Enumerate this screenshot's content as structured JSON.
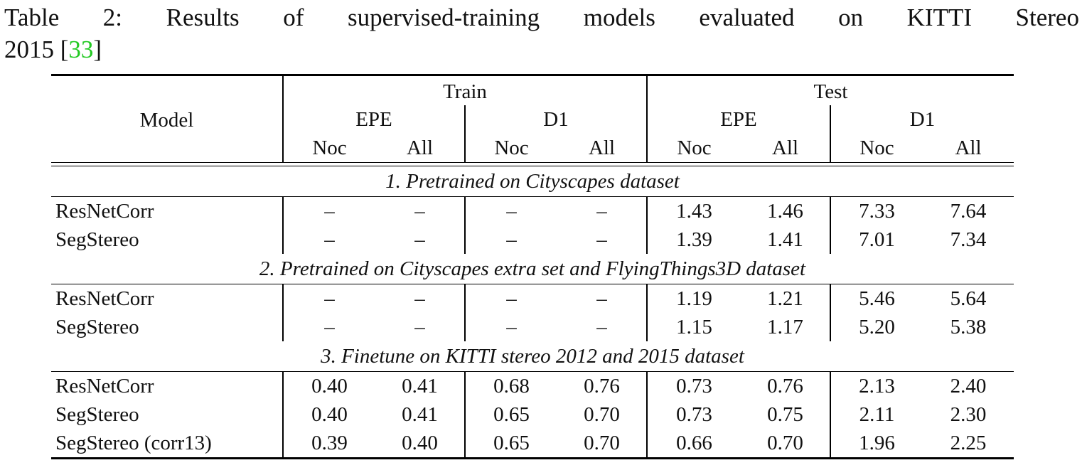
{
  "caption": {
    "words": [
      "Table",
      "2:",
      "Results",
      "of",
      "supervised-training",
      "models",
      "evaluated",
      "on",
      "KITTI",
      "Stereo"
    ],
    "line2_prefix": "2015 [",
    "citation": "33",
    "line2_suffix": "]",
    "citation_color": "#22c922"
  },
  "table": {
    "model_header": "Model",
    "train_header": "Train",
    "test_header": "Test",
    "metric_headers": [
      "EPE",
      "D1",
      "EPE",
      "D1"
    ],
    "sub_headers": [
      "Noc",
      "All",
      "Noc",
      "All",
      "Noc",
      "All",
      "Noc",
      "All"
    ],
    "sections": [
      {
        "title": "1. Pretrained on Cityscapes dataset",
        "rows": [
          {
            "model": "ResNetCorr",
            "bold_model": false,
            "values": [
              "–",
              "–",
              "–",
              "–",
              "1.43",
              "1.46",
              "7.33",
              "7.64"
            ],
            "bold": [
              false,
              false,
              false,
              false,
              false,
              false,
              false,
              false
            ]
          },
          {
            "model": "SegStereo",
            "bold_model": true,
            "values": [
              "–",
              "–",
              "–",
              "–",
              "1.39",
              "1.41",
              "7.01",
              "7.34"
            ],
            "bold": [
              false,
              false,
              false,
              false,
              true,
              true,
              true,
              true
            ]
          }
        ]
      },
      {
        "title": "2. Pretrained on Cityscapes extra set and FlyingThings3D dataset",
        "rows": [
          {
            "model": "ResNetCorr",
            "bold_model": false,
            "values": [
              "–",
              "–",
              "–",
              "–",
              "1.19",
              "1.21",
              "5.46",
              "5.64"
            ],
            "bold": [
              false,
              false,
              false,
              false,
              false,
              false,
              false,
              false
            ]
          },
          {
            "model": "SegStereo",
            "bold_model": true,
            "values": [
              "–",
              "–",
              "–",
              "–",
              "1.15",
              "1.17",
              "5.20",
              "5.38"
            ],
            "bold": [
              false,
              false,
              false,
              false,
              true,
              true,
              true,
              true
            ]
          }
        ]
      },
      {
        "title": "3. Finetune on KITTI stereo 2012 and 2015 dataset",
        "rows": [
          {
            "model": "ResNetCorr",
            "bold_model": false,
            "values": [
              "0.40",
              "0.41",
              "0.68",
              "0.76",
              "0.73",
              "0.76",
              "2.13",
              "2.40"
            ],
            "bold": [
              false,
              false,
              false,
              false,
              false,
              false,
              false,
              false
            ]
          },
          {
            "model": "SegStereo",
            "bold_model": true,
            "values": [
              "0.40",
              "0.41",
              "0.65",
              "0.70",
              "0.73",
              "0.75",
              "2.11",
              "2.30"
            ],
            "bold": [
              false,
              false,
              false,
              false,
              false,
              false,
              false,
              false
            ]
          },
          {
            "model": "SegStereo (corr13)",
            "bold_model": true,
            "values": [
              "0.39",
              "0.40",
              "0.65",
              "0.70",
              "0.66",
              "0.70",
              "1.96",
              "2.25"
            ],
            "bold": [
              false,
              false,
              false,
              false,
              true,
              true,
              true,
              true
            ]
          }
        ]
      }
    ]
  }
}
